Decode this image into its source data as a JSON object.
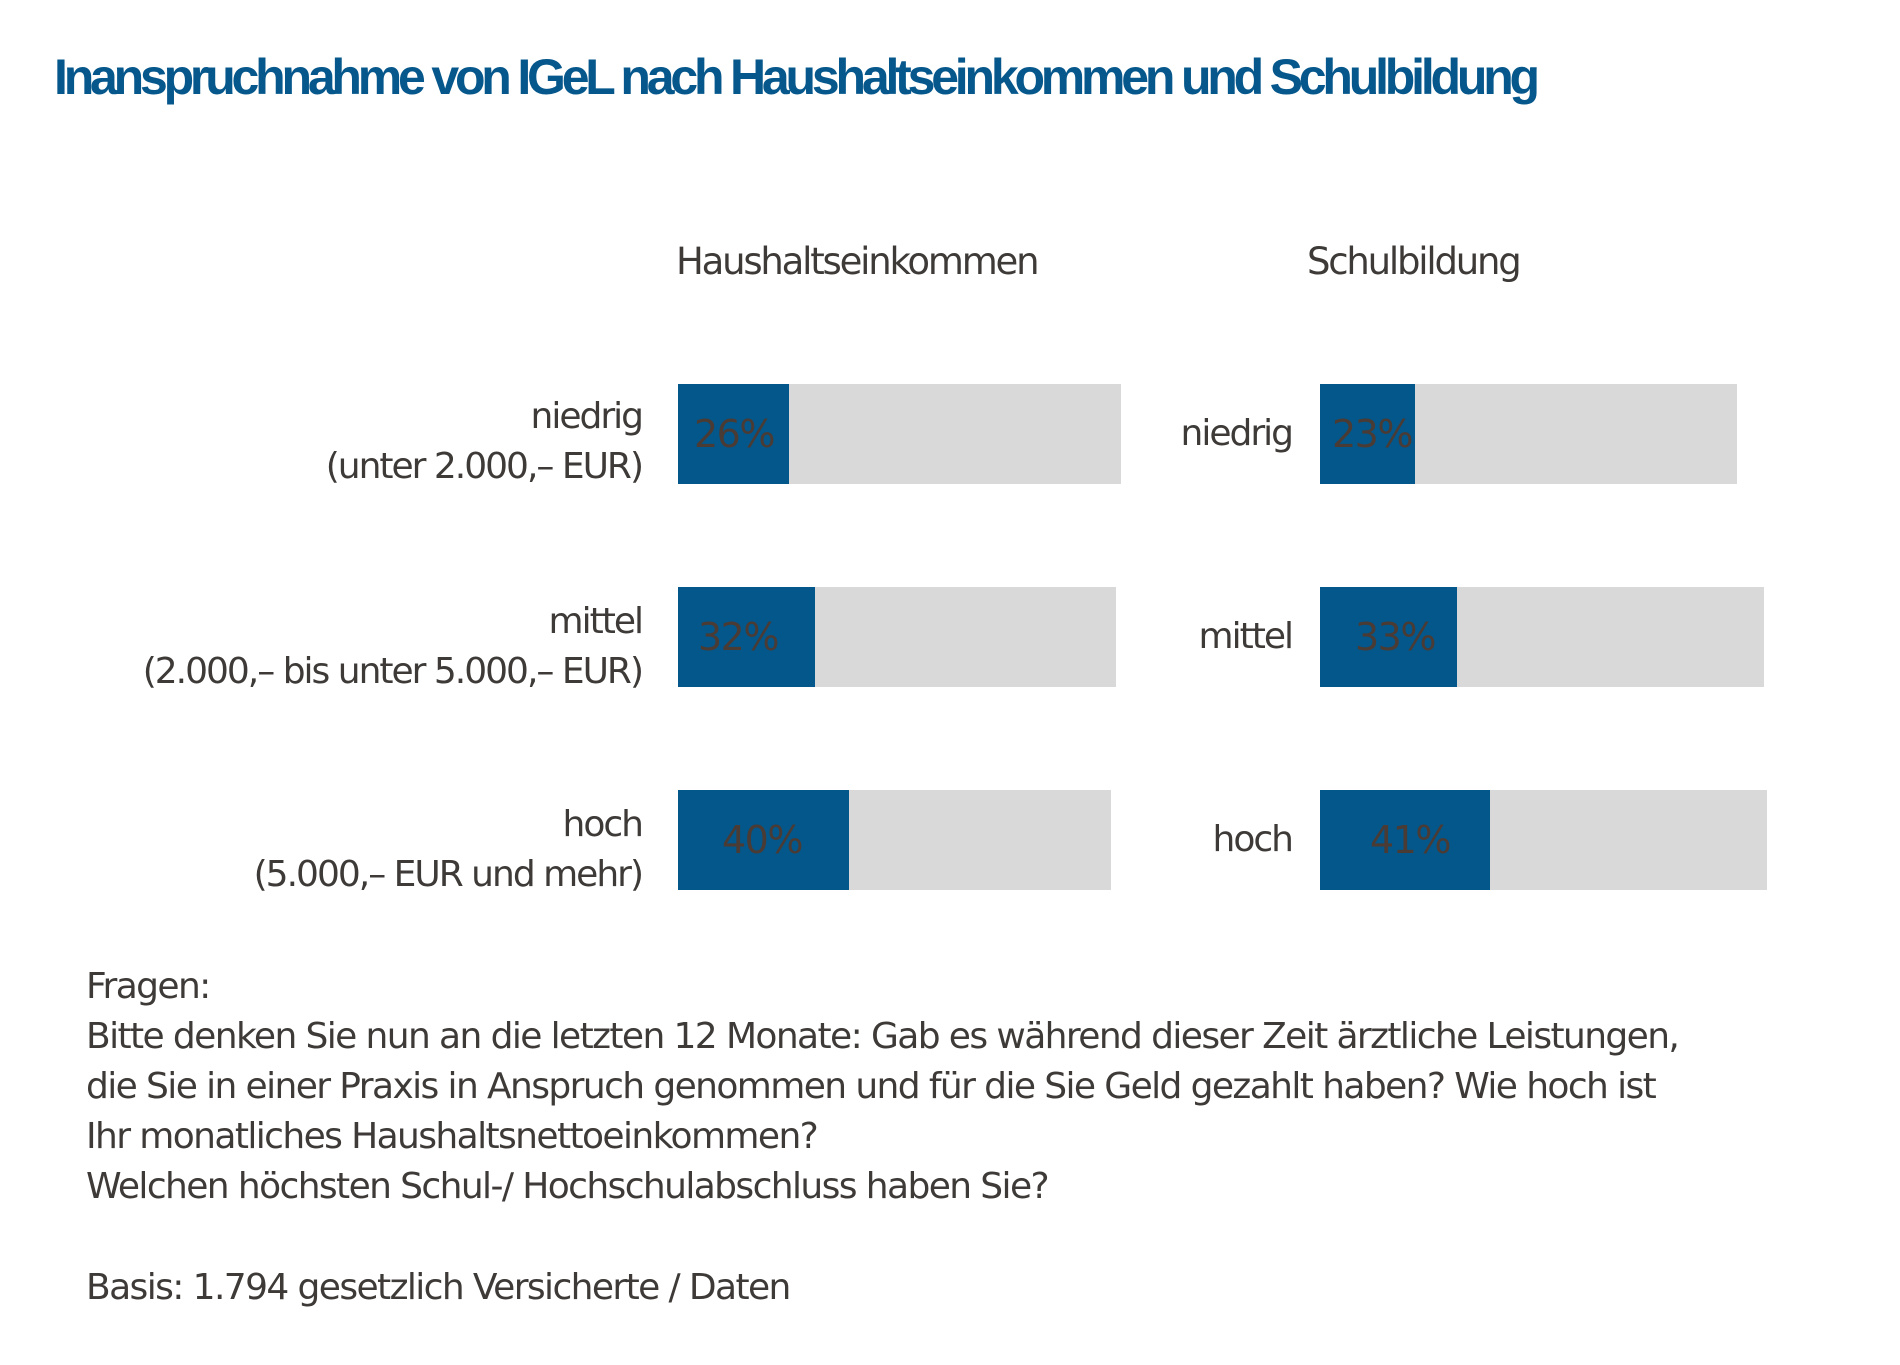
{
  "chart_data": [
    {
      "type": "bar",
      "title": "Inanspruchnahme von IGeL nach Haushaltseinkommen und Schulbildung",
      "subtitle": "Haushaltseinkommen",
      "categories": [
        {
          "label": "niedrig",
          "sublabel": "(unter 2.000,– EUR)"
        },
        {
          "label": "mittel",
          "sublabel": "(2.000,– bis unter 5.000,– EUR)"
        },
        {
          "label": "hoch",
          "sublabel": "(5.000,– EUR und mehr)"
        }
      ],
      "values": [
        26,
        32,
        40
      ],
      "value_labels": [
        "26%",
        "32%",
        "40%"
      ],
      "unit": "%"
    },
    {
      "type": "bar",
      "subtitle": "Schulbildung",
      "categories": [
        {
          "label": "niedrig"
        },
        {
          "label": "mittel"
        },
        {
          "label": "hoch"
        }
      ],
      "values": [
        23,
        33,
        41
      ],
      "value_labels": [
        "23%",
        "33%",
        "41%"
      ],
      "unit": "%"
    }
  ],
  "colors": {
    "bar": "#03578a",
    "track": "#d9d9d9",
    "title": "#06578b"
  },
  "footer": {
    "lines": [
      "Fragen:",
      "Bitte denken Sie nun an die letzten 12 Monate: Gab es während dieser Zeit ärztliche Leistungen,",
      "die Sie in einer Praxis in Anspruch genommen und für die Sie Geld gezahlt haben? Wie hoch ist",
      "Ihr monatliches Haushaltsnettoeinkommen?",
      "Welchen höchsten Schul-/ Hochschulabschluss haben Sie?"
    ],
    "basis": "Basis: 1.794 gesetzlich Versicherte / Daten"
  }
}
